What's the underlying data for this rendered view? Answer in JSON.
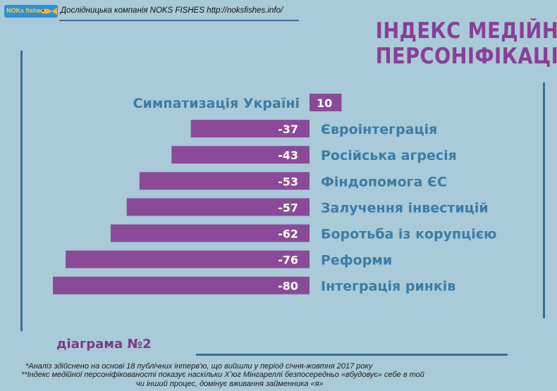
{
  "header": {
    "logo_text": "NOKs fishes",
    "company_line": "Дослідницька компанія NOKS FISHES http://noksfishes.info/"
  },
  "title": {
    "line1": "ІНДЕКС МЕДІЙНОЇ",
    "line2": "ПЕРСОНІФІКАЦІЇ"
  },
  "colors": {
    "background": "#a9cad8",
    "bar": "#8a4a97",
    "label": "#3c7ca6",
    "title": "#8a3f95",
    "rule": "#3a6f94"
  },
  "chart_data": {
    "type": "bar",
    "orientation": "horizontal",
    "categories": [
      "Симпатизація Україні",
      "Євроінтеграція",
      "Російська агресія",
      "Фіндопомога ЄС",
      "Залучення інвестицій",
      "Боротьба із корупцією",
      "Реформи",
      "Інтеграція ринків"
    ],
    "values": [
      10,
      -37,
      -43,
      -53,
      -57,
      -62,
      -76,
      -80
    ],
    "value_labels": [
      "10",
      "-37",
      "-43",
      "-53",
      "-57",
      "-62",
      "-76",
      "-80"
    ],
    "grid": false
  },
  "diagram_label": "діаграма №2",
  "footnotes": {
    "note1": "*Аналіз здійснено на основі 18 публічних інтерв'ю, що вийшли у період січня-жовтня 2017 року",
    "note2_line1": "**Індекс медійної персоніфікованості показує наскільки Хʼюг Мінгареллі безпосередньо «вбудовує» себе в той",
    "note2_line2": "чи інший процес, домінує вживання займенника «я»"
  }
}
